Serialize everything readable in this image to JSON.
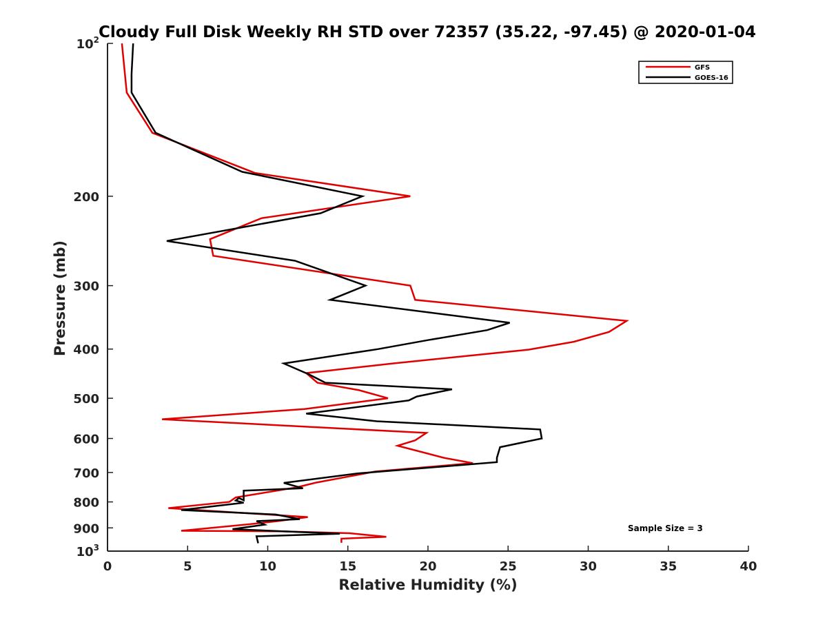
{
  "chart_data": {
    "type": "line",
    "title": "Cloudy Full Disk Weekly RH STD over 72357 (35.22, -97.45) @ 2020-01-04",
    "xlabel": "Relative Humidity (%)",
    "ylabel": "Pressure (mb)",
    "xlim": [
      0,
      40
    ],
    "ylim": [
      1000,
      100
    ],
    "y_scale": "log",
    "y_reversed": true,
    "grid": false,
    "legend_position": "top-right",
    "x_ticks": [
      0,
      5,
      10,
      15,
      20,
      25,
      30,
      35,
      40
    ],
    "y_ticks": [
      {
        "value": 100,
        "label": "10",
        "sup": "2"
      },
      {
        "value": 200,
        "label": "200",
        "sup": ""
      },
      {
        "value": 300,
        "label": "300",
        "sup": ""
      },
      {
        "value": 400,
        "label": "400",
        "sup": ""
      },
      {
        "value": 500,
        "label": "500",
        "sup": ""
      },
      {
        "value": 600,
        "label": "600",
        "sup": ""
      },
      {
        "value": 700,
        "label": "700",
        "sup": ""
      },
      {
        "value": 800,
        "label": "800",
        "sup": ""
      },
      {
        "value": 900,
        "label": "900",
        "sup": ""
      },
      {
        "value": 1000,
        "label": "10",
        "sup": "3"
      }
    ],
    "series": [
      {
        "name": "GFS",
        "color": "#e00000",
        "points": [
          [
            0.9,
            100
          ],
          [
            1.2,
            125
          ],
          [
            2.8,
            150
          ],
          [
            9.2,
            180
          ],
          [
            18.9,
            200
          ],
          [
            9.6,
            221
          ],
          [
            6.4,
            243
          ],
          [
            6.6,
            262
          ],
          [
            18.9,
            300
          ],
          [
            19.2,
            320
          ],
          [
            32.4,
            352
          ],
          [
            31.3,
            370
          ],
          [
            29.1,
            387
          ],
          [
            26.3,
            401
          ],
          [
            17.8,
            427
          ],
          [
            12.4,
            446
          ],
          [
            13.1,
            466
          ],
          [
            15.7,
            482
          ],
          [
            17.5,
            500
          ],
          [
            12.3,
            525
          ],
          [
            3.4,
            550
          ],
          [
            19.9,
            585
          ],
          [
            19.2,
            605
          ],
          [
            18.1,
            620
          ],
          [
            21.0,
            655
          ],
          [
            22.8,
            671
          ],
          [
            16.7,
            697
          ],
          [
            13.0,
            733
          ],
          [
            11.8,
            749
          ],
          [
            8.0,
            784
          ],
          [
            7.6,
            800
          ],
          [
            3.8,
            823
          ],
          [
            12.5,
            857
          ],
          [
            10.6,
            873
          ],
          [
            8.9,
            885
          ],
          [
            4.6,
            912
          ],
          [
            10.8,
            914
          ],
          [
            15.1,
            922
          ],
          [
            17.4,
            937
          ],
          [
            14.6,
            945
          ],
          [
            14.6,
            963
          ]
        ]
      },
      {
        "name": "GOES-16",
        "color": "#000000",
        "points": [
          [
            1.6,
            100
          ],
          [
            1.5,
            115
          ],
          [
            1.5,
            125
          ],
          [
            3.0,
            150
          ],
          [
            8.4,
            179
          ],
          [
            15.9,
            200
          ],
          [
            13.3,
            216
          ],
          [
            3.7,
            245
          ],
          [
            11.7,
            268
          ],
          [
            16.1,
            300
          ],
          [
            13.9,
            320
          ],
          [
            25.1,
            355
          ],
          [
            23.7,
            367
          ],
          [
            20.0,
            384
          ],
          [
            16.9,
            400
          ],
          [
            11.0,
            427
          ],
          [
            12.6,
            449
          ],
          [
            13.6,
            466
          ],
          [
            21.5,
            480
          ],
          [
            19.3,
            496
          ],
          [
            18.8,
            505
          ],
          [
            12.4,
            536
          ],
          [
            16.8,
            555
          ],
          [
            27.0,
            576
          ],
          [
            27.1,
            600
          ],
          [
            24.5,
            624
          ],
          [
            24.3,
            655
          ],
          [
            24.3,
            668
          ],
          [
            15.6,
            703
          ],
          [
            11.0,
            734
          ],
          [
            12.2,
            752
          ],
          [
            8.5,
            760
          ],
          [
            8.5,
            794
          ],
          [
            8.2,
            786
          ],
          [
            8.0,
            795
          ],
          [
            8.5,
            803
          ],
          [
            4.6,
            830
          ],
          [
            10.5,
            847
          ],
          [
            12.0,
            865
          ],
          [
            9.3,
            873
          ],
          [
            9.8,
            887
          ],
          [
            7.8,
            905
          ],
          [
            14.5,
            924
          ],
          [
            9.3,
            935
          ],
          [
            9.4,
            965
          ]
        ]
      }
    ],
    "annotation": "Sample Size = 3"
  }
}
